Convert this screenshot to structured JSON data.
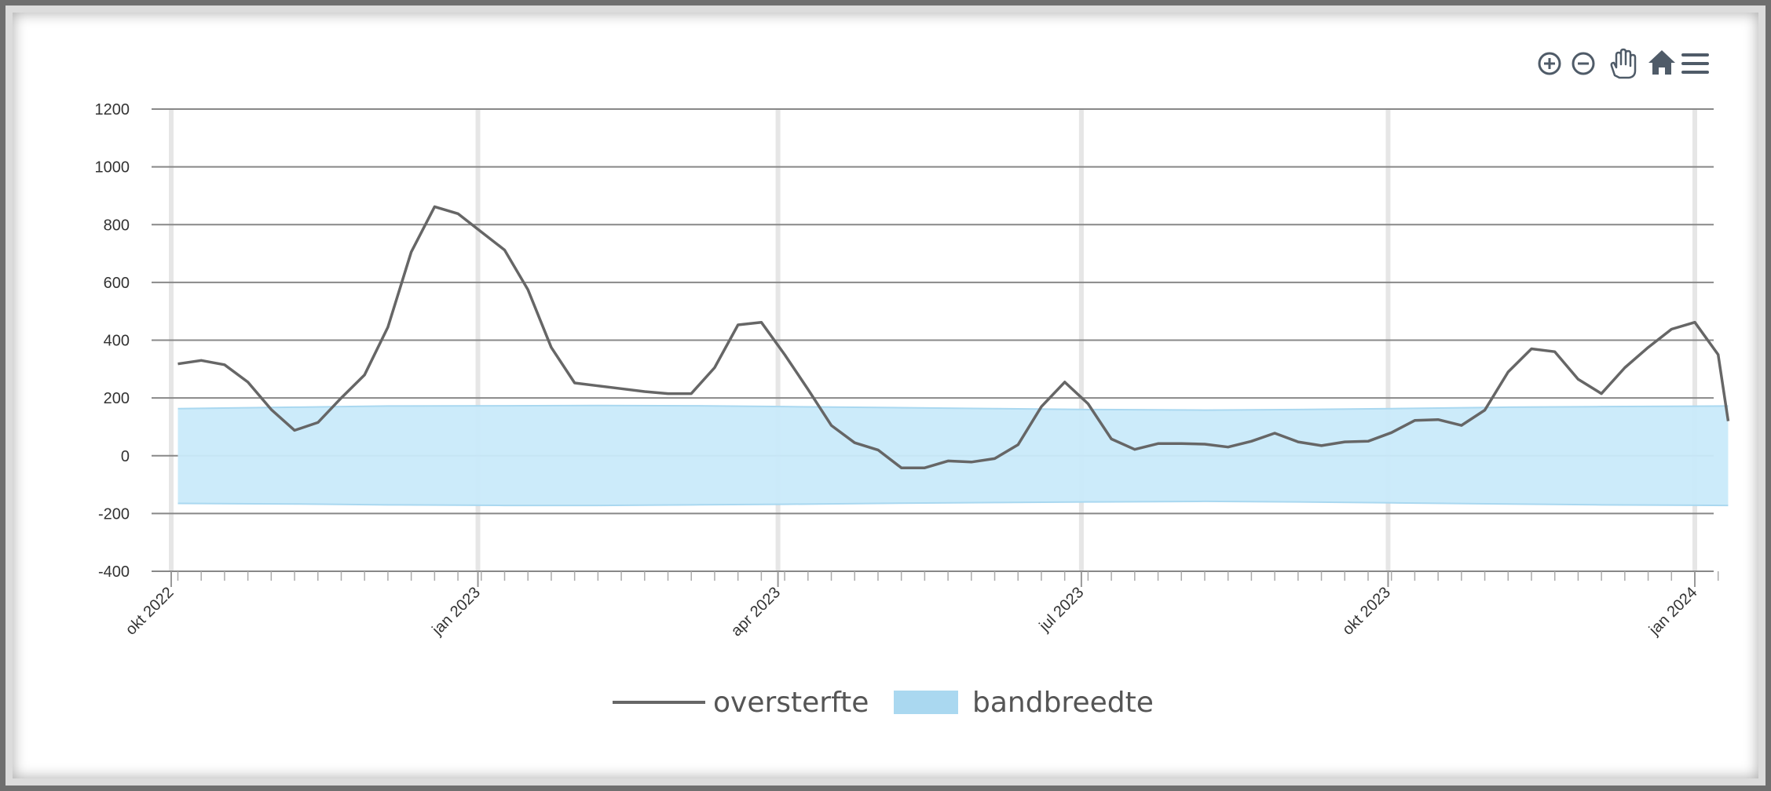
{
  "chart_data": {
    "type": "line",
    "y_ticks": [
      1200,
      1000,
      800,
      600,
      400,
      200,
      0,
      -200,
      -400
    ],
    "ylim": [
      -400,
      1200
    ],
    "x_ticks": [
      "okt 2022",
      "jan 2023",
      "apr 2023",
      "jul 2023",
      "okt 2023",
      "jan 2024"
    ],
    "x_range": [
      "2022-10-01",
      "2024-01-01"
    ],
    "grid": true,
    "legend_position": "bottom",
    "series": [
      {
        "name": "oversterfte",
        "type": "line",
        "color": "#666666",
        "points": [
          [
            "2022-10-03",
            318
          ],
          [
            "2022-10-10",
            330
          ],
          [
            "2022-10-17",
            315
          ],
          [
            "2022-10-24",
            255
          ],
          [
            "2022-10-31",
            160
          ],
          [
            "2022-11-07",
            88
          ],
          [
            "2022-11-14",
            115
          ],
          [
            "2022-11-21",
            200
          ],
          [
            "2022-11-28",
            280
          ],
          [
            "2022-12-05",
            445
          ],
          [
            "2022-12-12",
            705
          ],
          [
            "2022-12-19",
            862
          ],
          [
            "2022-12-26",
            838
          ],
          [
            "2023-01-02",
            775
          ],
          [
            "2023-01-09",
            712
          ],
          [
            "2023-01-16",
            575
          ],
          [
            "2023-01-23",
            375
          ],
          [
            "2023-01-30",
            252
          ],
          [
            "2023-02-06",
            242
          ],
          [
            "2023-02-13",
            232
          ],
          [
            "2023-02-20",
            222
          ],
          [
            "2023-02-27",
            215
          ],
          [
            "2023-03-06",
            215
          ],
          [
            "2023-03-13",
            305
          ],
          [
            "2023-03-20",
            453
          ],
          [
            "2023-03-27",
            462
          ],
          [
            "2023-04-03",
            350
          ],
          [
            "2023-04-10",
            230
          ],
          [
            "2023-04-17",
            105
          ],
          [
            "2023-04-24",
            45
          ],
          [
            "2023-05-01",
            20
          ],
          [
            "2023-05-08",
            -42
          ],
          [
            "2023-05-15",
            -42
          ],
          [
            "2023-05-22",
            -18
          ],
          [
            "2023-05-29",
            -22
          ],
          [
            "2023-06-05",
            -10
          ],
          [
            "2023-06-12",
            38
          ],
          [
            "2023-06-19",
            170
          ],
          [
            "2023-06-26",
            255
          ],
          [
            "2023-07-03",
            180
          ],
          [
            "2023-07-10",
            58
          ],
          [
            "2023-07-17",
            22
          ],
          [
            "2023-07-24",
            42
          ],
          [
            "2023-07-31",
            42
          ],
          [
            "2023-08-07",
            40
          ],
          [
            "2023-08-14",
            30
          ],
          [
            "2023-08-21",
            50
          ],
          [
            "2023-08-28",
            78
          ],
          [
            "2023-09-04",
            48
          ],
          [
            "2023-09-11",
            35
          ],
          [
            "2023-09-18",
            48
          ],
          [
            "2023-09-25",
            50
          ],
          [
            "2023-10-02",
            80
          ],
          [
            "2023-10-09",
            122
          ],
          [
            "2023-10-16",
            125
          ],
          [
            "2023-10-23",
            105
          ],
          [
            "2023-10-30",
            158
          ],
          [
            "2023-11-06",
            290
          ],
          [
            "2023-11-13",
            370
          ],
          [
            "2023-11-20",
            360
          ],
          [
            "2023-11-27",
            265
          ],
          [
            "2023-12-04",
            215
          ],
          [
            "2023-12-11",
            305
          ],
          [
            "2023-12-18",
            375
          ],
          [
            "2023-12-25",
            438
          ],
          [
            "2024-01-01",
            462
          ],
          [
            "2024-01-08",
            350
          ],
          [
            "2024-01-11",
            120
          ]
        ]
      },
      {
        "name": "bandbreedte",
        "type": "area-range",
        "color": "#aad8f0",
        "fill": "#c9eafa",
        "points": [
          [
            "2022-10-03",
            -165,
            163
          ],
          [
            "2022-11-07",
            -167,
            168
          ],
          [
            "2022-12-05",
            -170,
            172
          ],
          [
            "2023-01-09",
            -172,
            173
          ],
          [
            "2023-02-06",
            -172,
            174
          ],
          [
            "2023-03-06",
            -170,
            173
          ],
          [
            "2023-04-03",
            -168,
            170
          ],
          [
            "2023-05-01",
            -165,
            167
          ],
          [
            "2023-06-05",
            -162,
            163
          ],
          [
            "2023-07-03",
            -160,
            160
          ],
          [
            "2023-08-07",
            -158,
            158
          ],
          [
            "2023-09-04",
            -160,
            160
          ],
          [
            "2023-10-02",
            -163,
            163
          ],
          [
            "2023-11-06",
            -167,
            168
          ],
          [
            "2023-12-04",
            -170,
            170
          ],
          [
            "2024-01-11",
            -172,
            172
          ]
        ]
      }
    ]
  },
  "legend": [
    {
      "label": "oversterfte",
      "kind": "line",
      "color": "#666666"
    },
    {
      "label": "bandbreedte",
      "kind": "area",
      "color": "#aad8f0"
    }
  ],
  "toolbar": [
    {
      "name": "zoom-in-icon"
    },
    {
      "name": "zoom-out-icon"
    },
    {
      "name": "pan-hand-icon"
    },
    {
      "name": "home-icon"
    },
    {
      "name": "menu-icon"
    }
  ],
  "colors": {
    "grid": "#888888",
    "axis_text": "#333333",
    "line": "#666666",
    "band": "#c9eafa",
    "toolbar": "#4f5b68"
  }
}
